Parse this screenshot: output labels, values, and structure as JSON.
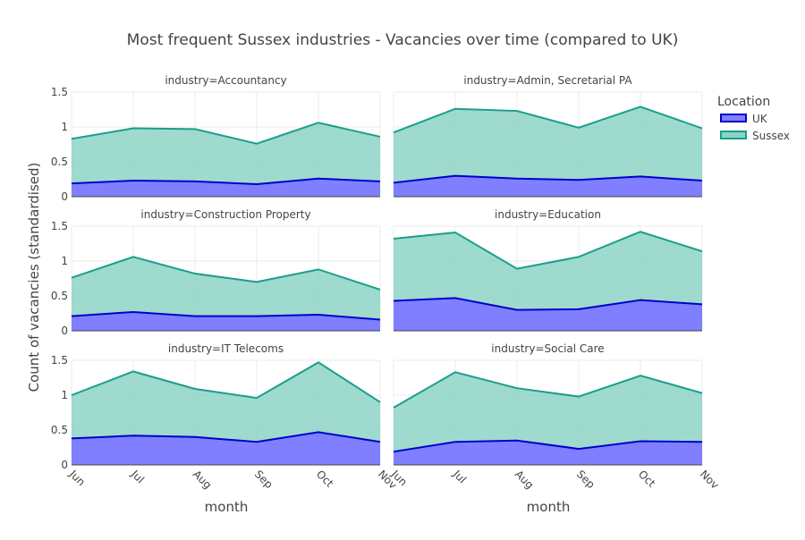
{
  "chart_data": {
    "type": "area",
    "title": "Most frequent Sussex industries - Vacancies over time (compared to UK)",
    "xlabel": "month",
    "ylabel": "Count of vacancies (standardised)",
    "categories": [
      "Jun",
      "Jul",
      "Aug",
      "Sep",
      "Oct",
      "Nov"
    ],
    "ylim": [
      0,
      1.5
    ],
    "yticks": [
      "0",
      "0.5",
      "1",
      "1.5"
    ],
    "grid": true,
    "stacked": false,
    "legend": {
      "title": "Location",
      "placement": "top-right",
      "entries": [
        {
          "name": "UK",
          "color": "#0000cc",
          "fill": "#7f7fff"
        },
        {
          "name": "Sussex",
          "color": "#1a9e8c",
          "fill": "#8dd3c5"
        }
      ]
    },
    "panels": [
      {
        "label": "industry=Accountancy",
        "series": [
          {
            "name": "UK",
            "values": [
              0.19,
              0.23,
              0.22,
              0.18,
              0.26,
              0.22
            ]
          },
          {
            "name": "Sussex",
            "values": [
              0.83,
              0.98,
              0.97,
              0.76,
              1.06,
              0.86
            ]
          }
        ]
      },
      {
        "label": "industry=Admin, Secretarial PA",
        "series": [
          {
            "name": "UK",
            "values": [
              0.2,
              0.3,
              0.26,
              0.24,
              0.29,
              0.23
            ]
          },
          {
            "name": "Sussex",
            "values": [
              0.92,
              1.26,
              1.23,
              0.99,
              1.29,
              0.98
            ]
          }
        ]
      },
      {
        "label": "industry=Construction Property",
        "series": [
          {
            "name": "UK",
            "values": [
              0.21,
              0.27,
              0.21,
              0.21,
              0.23,
              0.16
            ]
          },
          {
            "name": "Sussex",
            "values": [
              0.76,
              1.06,
              0.82,
              0.7,
              0.88,
              0.59
            ]
          }
        ]
      },
      {
        "label": "industry=Education",
        "series": [
          {
            "name": "UK",
            "values": [
              0.43,
              0.47,
              0.3,
              0.31,
              0.44,
              0.38
            ]
          },
          {
            "name": "Sussex",
            "values": [
              1.32,
              1.41,
              0.89,
              1.06,
              1.42,
              1.14
            ]
          }
        ]
      },
      {
        "label": "industry=IT Telecoms",
        "series": [
          {
            "name": "UK",
            "values": [
              0.38,
              0.42,
              0.4,
              0.33,
              0.47,
              0.33
            ]
          },
          {
            "name": "Sussex",
            "values": [
              1.0,
              1.34,
              1.09,
              0.96,
              1.47,
              0.9
            ]
          }
        ]
      },
      {
        "label": "industry=Social Care",
        "series": [
          {
            "name": "UK",
            "values": [
              0.19,
              0.33,
              0.35,
              0.23,
              0.34,
              0.33
            ]
          },
          {
            "name": "Sussex",
            "values": [
              0.82,
              1.33,
              1.1,
              0.98,
              1.28,
              1.03
            ]
          }
        ]
      }
    ]
  }
}
